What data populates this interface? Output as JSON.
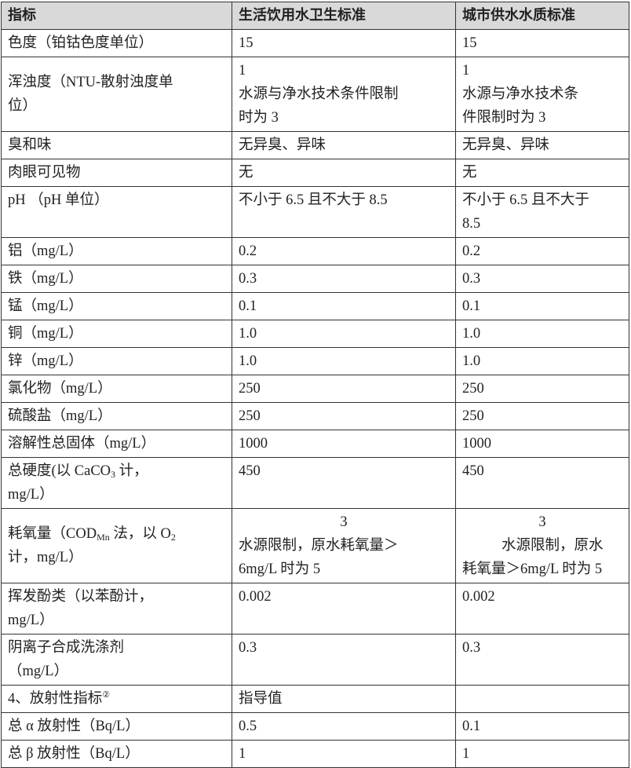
{
  "header": [
    "指标",
    "生活饮用水卫生标准",
    "城市供水水质标准"
  ],
  "rows": [
    {
      "cells": [
        [
          "色度（铂钴色度单位）"
        ],
        [
          "15"
        ],
        [
          "15"
        ]
      ]
    },
    {
      "cells": [
        [
          "浑浊度（NTU-散射浊度单",
          "位）"
        ],
        [
          "1",
          "水源与净水技术条件限制",
          "时为 3"
        ],
        [
          "1",
          "水源与净水技术条",
          "件限制时为 3"
        ]
      ]
    },
    {
      "cells": [
        [
          "臭和味"
        ],
        [
          "无异臭、异味"
        ],
        [
          "无异臭、异味"
        ]
      ]
    },
    {
      "cells": [
        [
          "肉眼可见物"
        ],
        [
          "无"
        ],
        [
          "无"
        ]
      ]
    },
    {
      "cells": [
        [
          "pH （pH 单位）"
        ],
        [
          "不小于 6.5 且不大于 8.5"
        ],
        [
          "不小于 6.5 且不大于",
          "8.5"
        ]
      ]
    },
    {
      "cells": [
        [
          "铝（mg/L）"
        ],
        [
          "0.2"
        ],
        [
          "0.2"
        ]
      ]
    },
    {
      "cells": [
        [
          "铁（mg/L）"
        ],
        [
          "0.3"
        ],
        [
          "0.3"
        ]
      ]
    },
    {
      "cells": [
        [
          "锰（mg/L）"
        ],
        [
          "0.1"
        ],
        [
          "0.1"
        ]
      ]
    },
    {
      "cells": [
        [
          "铜（mg/L）"
        ],
        [
          "1.0"
        ],
        [
          "1.0"
        ]
      ]
    },
    {
      "cells": [
        [
          "锌（mg/L）"
        ],
        [
          "1.0"
        ],
        [
          "1.0"
        ]
      ]
    },
    {
      "cells": [
        [
          "氯化物（mg/L）"
        ],
        [
          "250"
        ],
        [
          "250"
        ]
      ]
    },
    {
      "cells": [
        [
          "硫酸盐（mg/L）"
        ],
        [
          "250"
        ],
        [
          "250"
        ]
      ]
    },
    {
      "cells": [
        [
          "溶解性总固体（mg/L）"
        ],
        [
          "1000"
        ],
        [
          "1000"
        ]
      ]
    },
    {
      "cells": [
        [
          [
            "总硬度(以 CaCO",
            {
              "sub": "3"
            },
            " 计，"
          ],
          "mg/L）"
        ],
        [
          "450"
        ],
        [
          "450"
        ]
      ]
    },
    {
      "cells": [
        [
          [
            "耗氧量（COD",
            {
              "sub": "Mn"
            },
            " 法，以 O",
            {
              "sub": "2"
            }
          ],
          "计，mg/L）"
        ],
        [
          "3",
          "水源限制，原水耗氧量＞",
          "6mg/L 时为 5"
        ],
        [
          "3",
          "水源限制，原水",
          "耗氧量＞6mg/L 时为 5"
        ]
      ]
    },
    {
      "cells": [
        [
          "挥发酚类（以苯酚计，",
          "mg/L）"
        ],
        [
          "0.002"
        ],
        [
          "0.002"
        ]
      ]
    },
    {
      "cells": [
        [
          "阴离子合成洗涤剂",
          "（mg/L）"
        ],
        [
          "0.3"
        ],
        [
          "0.3"
        ]
      ]
    },
    {
      "cells": [
        [
          [
            "4、放射性指标",
            {
              "sup": "②"
            }
          ]
        ],
        [
          "指导值"
        ],
        [
          ""
        ]
      ]
    },
    {
      "cells": [
        [
          "总 α 放射性（Bq/L）"
        ],
        [
          "0.5"
        ],
        [
          "0.1"
        ]
      ]
    },
    {
      "cells": [
        [
          "总 β 放射性（Bq/L）"
        ],
        [
          "1"
        ],
        [
          "1"
        ]
      ]
    }
  ]
}
